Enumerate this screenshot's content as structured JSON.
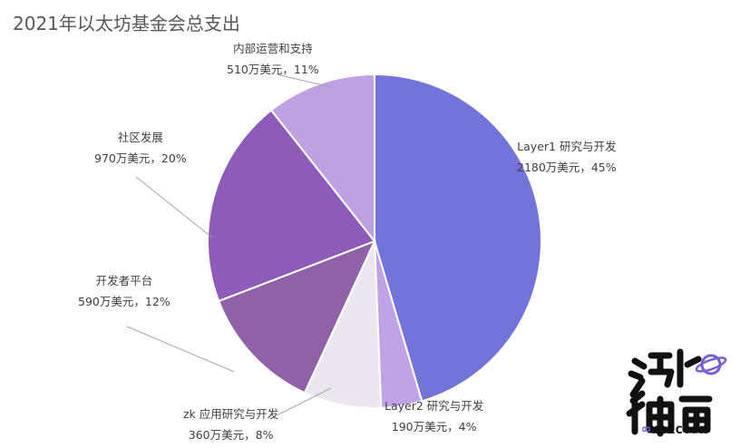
{
  "chart_data": {
    "type": "pie",
    "title": "2021年以太坊基金会总支出",
    "slices": [
      {
        "name": "Layer1 研究与开发",
        "amount": "2180万美元",
        "percent": "45%",
        "value": 2180,
        "color": "#7373d9"
      },
      {
        "name": "Layer2 研究与开发",
        "amount": "190万美元",
        "percent": "4%",
        "value": 190,
        "color": "#c0a3e6"
      },
      {
        "name": "zk 应用研究与开发",
        "amount": "360万美元",
        "percent": "8%",
        "value": 360,
        "color": "#ebe6ef"
      },
      {
        "name": "开发者平台",
        "amount": "590万美元",
        "percent": "12%",
        "value": 590,
        "color": "#9061a8"
      },
      {
        "name": "社区发展",
        "amount": "970万美元",
        "percent": "20%",
        "value": 970,
        "color": "#8c5cb8"
      },
      {
        "name": "内部运营和支持",
        "amount": "510万美元",
        "percent": "11%",
        "value": 510,
        "color": "#bfa0e3"
      }
    ]
  },
  "watermark": {
    "logo": "海外独角兽",
    "text": "unicorn"
  }
}
